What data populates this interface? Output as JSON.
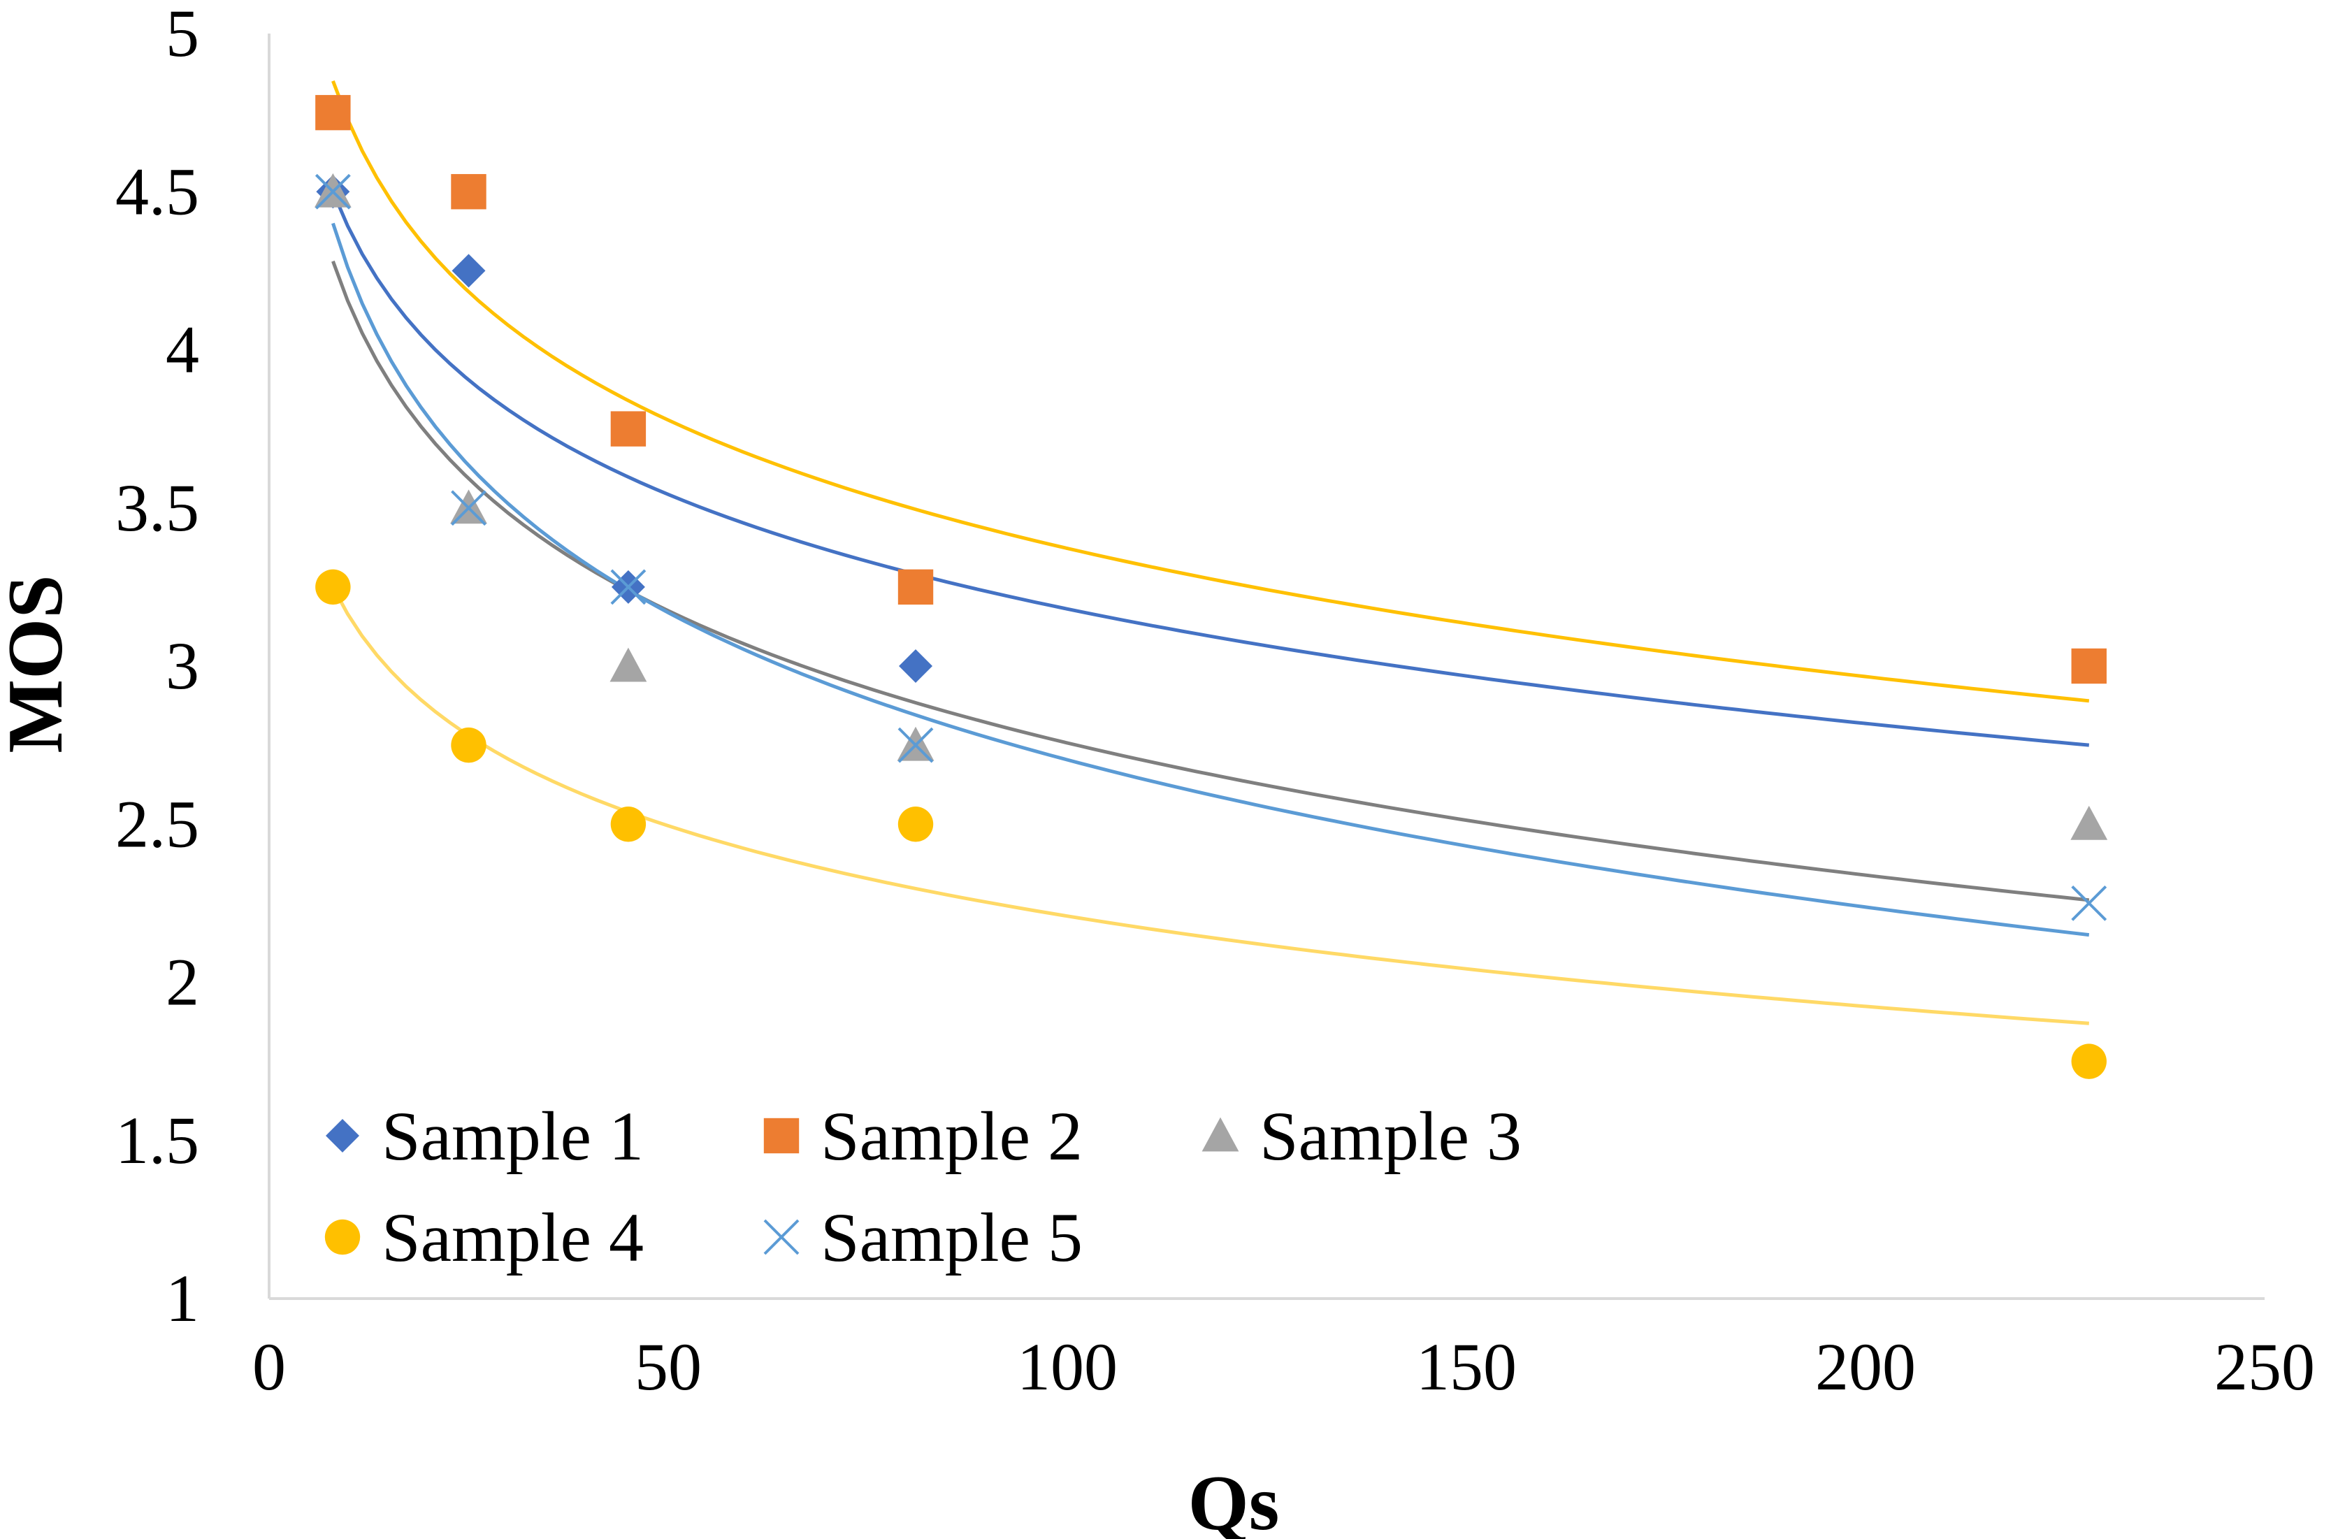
{
  "chart_data": {
    "type": "scatter",
    "title": "",
    "xlabel": "Qs",
    "ylabel": "MOS",
    "xlim": [
      0,
      250
    ],
    "ylim": [
      1,
      5
    ],
    "x_ticks": [
      0,
      50,
      100,
      150,
      200,
      250
    ],
    "y_ticks": [
      1,
      1.5,
      2,
      2.5,
      3,
      3.5,
      4,
      4.5,
      5
    ],
    "y_tick_labels": [
      "1",
      "1.5",
      "2",
      "2.5",
      "3",
      "3.5",
      "4",
      "4.5",
      "5"
    ],
    "grid": false,
    "legend_position": "bottom-left",
    "trendline": "logarithmic",
    "x": [
      8,
      25,
      45,
      81,
      228
    ],
    "series": [
      {
        "name": "Sample 1",
        "marker": "diamond",
        "color": "#4472C4",
        "values": [
          4.5,
          4.25,
          3.25,
          3.0,
          null
        ],
        "trend": {
          "from": [
            8,
            4.5
          ],
          "to": [
            228,
            2.75
          ],
          "color": "#4472C4"
        }
      },
      {
        "name": "Sample 2",
        "marker": "square",
        "color": "#ED7D31",
        "values": [
          4.75,
          4.5,
          3.75,
          3.25,
          3.0
        ],
        "trend": {
          "from": [
            8,
            4.85
          ],
          "to": [
            228,
            2.89
          ],
          "color": "#FFC000"
        }
      },
      {
        "name": "Sample 3",
        "marker": "triangle",
        "color": "#A5A5A5",
        "values": [
          4.5,
          3.5,
          3.0,
          2.75,
          2.5
        ],
        "trend": {
          "from": [
            8,
            4.28
          ],
          "to": [
            228,
            2.26
          ],
          "color": "#7F7F7F"
        }
      },
      {
        "name": "Sample 4",
        "marker": "circle",
        "color": "#FFC000",
        "values": [
          3.25,
          2.75,
          2.5,
          2.5,
          1.75
        ],
        "trend": {
          "from": [
            8,
            3.25
          ],
          "to": [
            228,
            1.87
          ],
          "color": "#FFD966"
        }
      },
      {
        "name": "Sample 5",
        "marker": "x",
        "color": "#5B9BD5",
        "values": [
          4.5,
          3.5,
          3.25,
          2.75,
          2.25
        ],
        "trend": {
          "from": [
            8,
            4.4
          ],
          "to": [
            228,
            2.15
          ],
          "color": "#5B9BD5"
        }
      }
    ]
  },
  "colors": {
    "axis": "#D9D9D9",
    "text": "#000000",
    "background": "#FFFFFF"
  }
}
